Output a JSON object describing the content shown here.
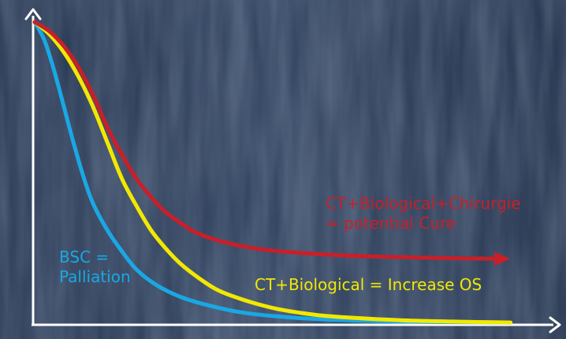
{
  "chart_data": {
    "type": "line",
    "title": "",
    "xlabel": "",
    "ylabel": "",
    "xlim": [
      0,
      100
    ],
    "ylim": [
      0,
      100
    ],
    "grid": false,
    "background": "blue textured photo",
    "series": [
      {
        "key": "bsc",
        "color": "#19a8e4",
        "arrow": false,
        "x": [
          0,
          2,
          4,
          6,
          8,
          10,
          12,
          15,
          18,
          21,
          25,
          30,
          35,
          42,
          50,
          60,
          70,
          80,
          90,
          98
        ],
        "y": [
          100,
          94,
          84,
          72,
          60,
          49,
          40,
          31,
          24,
          18,
          13,
          9,
          6.5,
          4,
          2.5,
          1.5,
          1,
          0.7,
          0.6,
          0.5
        ]
      },
      {
        "key": "ct_bio",
        "color": "#f2e800",
        "arrow": false,
        "x": [
          0,
          3,
          6,
          9,
          12,
          15,
          18,
          21,
          24,
          27,
          30,
          34,
          38,
          44,
          50,
          58,
          66,
          76,
          86,
          98
        ],
        "y": [
          100,
          96,
          90,
          82,
          72,
          60,
          48,
          39,
          31,
          25,
          20,
          15,
          11,
          7.5,
          5,
          3,
          2,
          1.2,
          0.8,
          0.5
        ]
      },
      {
        "key": "ct_bio_chir",
        "color": "#c91f28",
        "arrow": true,
        "x": [
          0,
          3,
          6,
          9,
          12,
          15,
          18,
          21,
          24,
          27,
          30,
          33,
          37,
          42,
          48,
          55,
          64,
          74,
          86,
          95
        ],
        "y": [
          100,
          97,
          92,
          85,
          76,
          65,
          56,
          48,
          42,
          37,
          33.5,
          30.5,
          28,
          26,
          24.5,
          23.5,
          22.7,
          22.2,
          21.8,
          21.6
        ]
      }
    ],
    "annotations": {
      "bsc": [
        "BSC =",
        "Palliation"
      ],
      "ct_bio": "CT+Biological = Increase OS",
      "ct_bio_chir": [
        "CT+Biological+Chirurgie",
        "= potential Cure"
      ]
    }
  }
}
